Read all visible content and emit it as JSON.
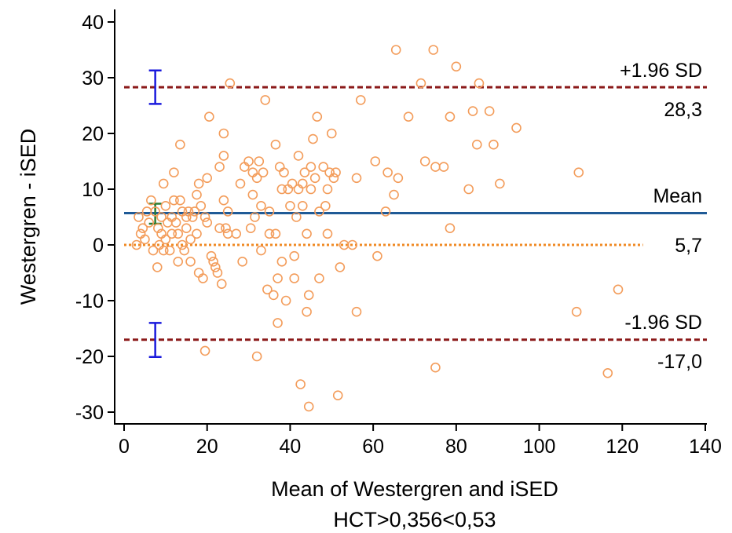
{
  "chart_data": {
    "type": "scatter",
    "title": "",
    "xlabel": "Mean of Westergren and iSED",
    "xlabel2": "HCT>0,356<0,53",
    "ylabel": "Westergren - iSED",
    "xlim": [
      0,
      140
    ],
    "ylim": [
      -30,
      40
    ],
    "x_ticks": [
      0,
      20,
      40,
      60,
      80,
      100,
      120,
      140
    ],
    "y_ticks": [
      -30,
      -20,
      -10,
      0,
      10,
      20,
      30,
      40
    ],
    "grid": false,
    "colors": {
      "points": "#f39c5a",
      "mean_line": "#1f5a96",
      "sd_lines": "#8b1a1a",
      "zero_line": "#f08a24",
      "ci_sd": "#1a1adc",
      "ci_mean": "#2e7d32"
    },
    "reference_lines": {
      "upper": {
        "label": "+1.96 SD",
        "value_label": "28,3",
        "value": 28.3
      },
      "mean": {
        "label": "Mean",
        "value_label": "5,7",
        "value": 5.7
      },
      "lower": {
        "label": "-1.96 SD",
        "value_label": "-17,0",
        "value": -17.0
      },
      "zero": {
        "value": 0
      }
    },
    "confidence_intervals": [
      {
        "of": "upper",
        "x": 7.5,
        "low": 25.3,
        "high": 31.3
      },
      {
        "of": "mean",
        "x": 7.5,
        "low": 3.8,
        "high": 7.4
      },
      {
        "of": "lower",
        "x": 7.5,
        "low": -20.1,
        "high": -14.0
      }
    ],
    "points": [
      [
        3,
        0
      ],
      [
        3.5,
        5
      ],
      [
        4,
        2
      ],
      [
        4.5,
        3
      ],
      [
        5,
        1
      ],
      [
        5.5,
        6
      ],
      [
        6,
        4
      ],
      [
        6.5,
        8
      ],
      [
        7,
        -1
      ],
      [
        7.5,
        6
      ],
      [
        8,
        -4
      ],
      [
        8.2,
        3
      ],
      [
        8.5,
        0
      ],
      [
        9,
        2
      ],
      [
        9,
        5
      ],
      [
        9.5,
        -1
      ],
      [
        9.5,
        11
      ],
      [
        10,
        1
      ],
      [
        10,
        7
      ],
      [
        10.5,
        4
      ],
      [
        11,
        -1
      ],
      [
        11.5,
        5
      ],
      [
        11.5,
        2
      ],
      [
        12,
        13
      ],
      [
        12,
        8
      ],
      [
        12.5,
        4
      ],
      [
        13,
        -3
      ],
      [
        13,
        2
      ],
      [
        13.5,
        8
      ],
      [
        13.5,
        18
      ],
      [
        14,
        0
      ],
      [
        14,
        6
      ],
      [
        14.5,
        -1
      ],
      [
        15,
        3
      ],
      [
        15,
        5
      ],
      [
        15.5,
        6
      ],
      [
        16,
        -3
      ],
      [
        16,
        1
      ],
      [
        16.5,
        5
      ],
      [
        17,
        6
      ],
      [
        17.5,
        2
      ],
      [
        17.5,
        9
      ],
      [
        18,
        11
      ],
      [
        18,
        -5
      ],
      [
        18.5,
        7
      ],
      [
        19,
        -6
      ],
      [
        19.5,
        5
      ],
      [
        19.5,
        -19
      ],
      [
        20,
        12
      ],
      [
        20,
        4
      ],
      [
        20.5,
        23
      ],
      [
        21,
        -2
      ],
      [
        21.5,
        -3
      ],
      [
        22,
        -4
      ],
      [
        22.5,
        -5
      ],
      [
        23,
        3
      ],
      [
        23,
        14
      ],
      [
        23.5,
        -7
      ],
      [
        24,
        8
      ],
      [
        24,
        16
      ],
      [
        24,
        20
      ],
      [
        24.5,
        3
      ],
      [
        25,
        2
      ],
      [
        25,
        6
      ],
      [
        25.5,
        29
      ],
      [
        27,
        2
      ],
      [
        28,
        11
      ],
      [
        28.5,
        -3
      ],
      [
        29,
        14
      ],
      [
        30,
        15
      ],
      [
        30.5,
        3
      ],
      [
        31,
        9
      ],
      [
        31,
        13
      ],
      [
        31.5,
        5
      ],
      [
        32,
        12
      ],
      [
        32,
        -20
      ],
      [
        32.5,
        15
      ],
      [
        33,
        -1
      ],
      [
        33,
        7
      ],
      [
        33.5,
        13
      ],
      [
        34,
        26
      ],
      [
        34.5,
        -8
      ],
      [
        35,
        6
      ],
      [
        35,
        2
      ],
      [
        36,
        -9
      ],
      [
        36.5,
        2
      ],
      [
        36.5,
        18
      ],
      [
        37,
        -6
      ],
      [
        37,
        -14
      ],
      [
        37.5,
        14
      ],
      [
        38,
        -3
      ],
      [
        38,
        10
      ],
      [
        38.5,
        13
      ],
      [
        39,
        -10
      ],
      [
        39.5,
        10
      ],
      [
        40,
        7
      ],
      [
        40.5,
        11
      ],
      [
        41,
        -2
      ],
      [
        41,
        -6
      ],
      [
        41.5,
        5
      ],
      [
        42,
        16
      ],
      [
        42,
        10
      ],
      [
        42.5,
        -25
      ],
      [
        43,
        7
      ],
      [
        43,
        11
      ],
      [
        43.5,
        13
      ],
      [
        44,
        -12
      ],
      [
        44,
        2
      ],
      [
        44.5,
        -9
      ],
      [
        44.5,
        -29
      ],
      [
        45,
        14
      ],
      [
        45,
        10
      ],
      [
        45.5,
        19
      ],
      [
        46,
        12
      ],
      [
        46.5,
        23
      ],
      [
        47,
        -6
      ],
      [
        47,
        6
      ],
      [
        48,
        14
      ],
      [
        48.5,
        7
      ],
      [
        49,
        2
      ],
      [
        49,
        10
      ],
      [
        49.5,
        13
      ],
      [
        50,
        20
      ],
      [
        50.5,
        12
      ],
      [
        51,
        13
      ],
      [
        51.5,
        -27
      ],
      [
        52,
        -4
      ],
      [
        53,
        0
      ],
      [
        55,
        0
      ],
      [
        56,
        -12
      ],
      [
        56,
        12
      ],
      [
        57,
        26
      ],
      [
        60.5,
        15
      ],
      [
        61,
        -2
      ],
      [
        63,
        6
      ],
      [
        63.5,
        13
      ],
      [
        65,
        9
      ],
      [
        65.5,
        35
      ],
      [
        66,
        12
      ],
      [
        68.5,
        23
      ],
      [
        71.5,
        29
      ],
      [
        72.5,
        15
      ],
      [
        74.5,
        35
      ],
      [
        75,
        -22
      ],
      [
        75,
        14
      ],
      [
        77,
        14
      ],
      [
        78.5,
        3
      ],
      [
        78.5,
        23
      ],
      [
        80,
        32
      ],
      [
        83,
        10
      ],
      [
        84,
        24
      ],
      [
        85,
        18
      ],
      [
        85.5,
        29
      ],
      [
        88,
        24
      ],
      [
        89,
        18
      ],
      [
        90.5,
        11
      ],
      [
        94.5,
        21
      ],
      [
        109,
        -12
      ],
      [
        109.5,
        13
      ],
      [
        116.5,
        -23
      ],
      [
        119,
        -8
      ]
    ]
  }
}
